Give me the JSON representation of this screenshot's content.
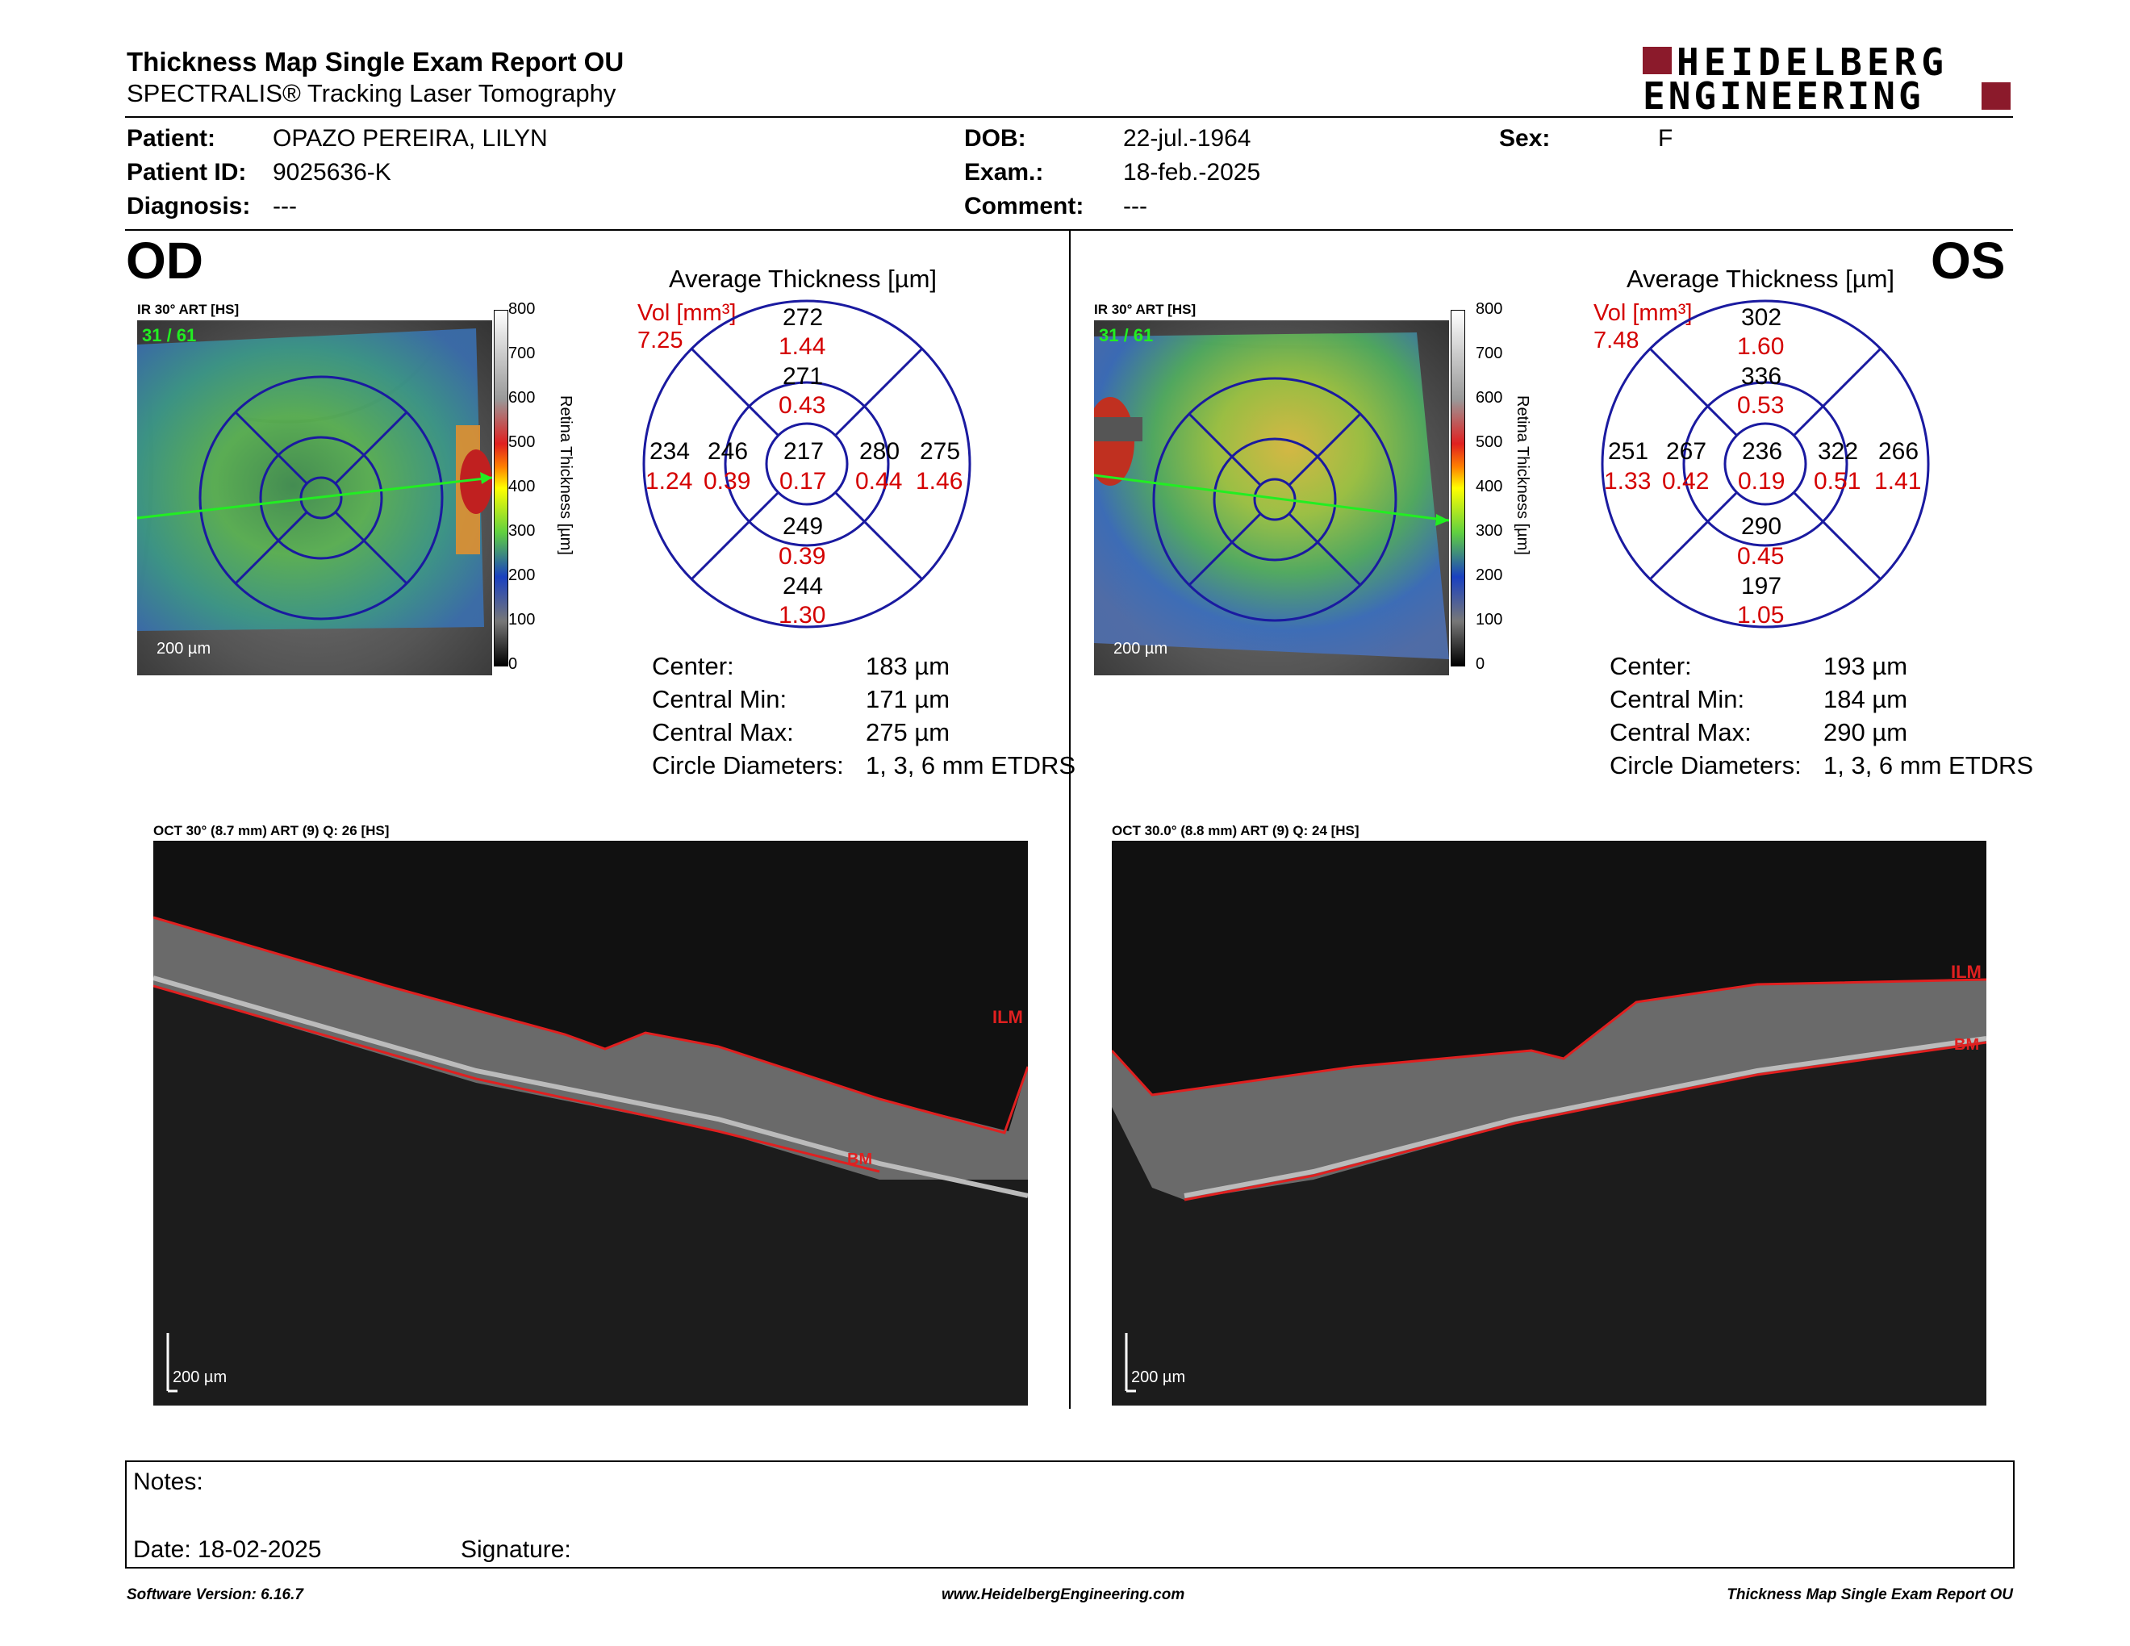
{
  "header": {
    "title": "Thickness Map Single Exam Report OU",
    "subtitle": "SPECTRALIS® Tracking Laser Tomography",
    "logo_line1": "HEIDELBERG",
    "logo_line2": "ENGINEERING",
    "logo_color": "#8b1a2b"
  },
  "patient": {
    "patient_label": "Patient:",
    "patient_value": "OPAZO PEREIRA, LILYN",
    "id_label": "Patient ID:",
    "id_value": "9025636-K",
    "diagnosis_label": "Diagnosis:",
    "diagnosis_value": "---",
    "dob_label": "DOB:",
    "dob_value": "22-jul.-1964",
    "exam_label": "Exam.:",
    "exam_value": "18-feb.-2025",
    "comment_label": "Comment:",
    "comment_value": "---",
    "sex_label": "Sex:",
    "sex_value": "F"
  },
  "od": {
    "eye_label": "OD",
    "ir_label": "IR 30° ART [HS]",
    "frame_label": "31 / 61",
    "scale_label": "200 µm",
    "chart_title": "Average Thickness [µm]",
    "vol_label": "Vol [mm³]",
    "vol_value": "7.25",
    "sectors": {
      "outer_sup": {
        "t": "272",
        "v": "1.44"
      },
      "inner_sup": {
        "t": "271",
        "v": "0.43"
      },
      "outer_left": {
        "t": "234",
        "v": "1.24"
      },
      "inner_left": {
        "t": "246",
        "v": "0.39"
      },
      "center": {
        "t": "217",
        "v": "0.17"
      },
      "inner_right": {
        "t": "280",
        "v": "0.44"
      },
      "outer_right": {
        "t": "275",
        "v": "1.46"
      },
      "inner_inf": {
        "t": "249",
        "v": "0.39"
      },
      "outer_inf": {
        "t": "244",
        "v": "1.30"
      }
    },
    "stats": {
      "center_label": "Center:",
      "center_value": "183 µm",
      "min_label": "Central Min:",
      "min_value": "171 µm",
      "max_label": "Central Max:",
      "max_value": "275 µm",
      "diam_label": "Circle Diameters:",
      "diam_value": "1, 3, 6 mm ETDRS"
    },
    "oct_label": "OCT 30° (8.7 mm) ART (9) Q: 26 [HS]",
    "oct_scale": "200 µm",
    "ilm": "ILM",
    "bm": "BM"
  },
  "os": {
    "eye_label": "OS",
    "ir_label": "IR 30° ART [HS]",
    "frame_label": "31 / 61",
    "scale_label": "200 µm",
    "chart_title": "Average Thickness [µm]",
    "vol_label": "Vol [mm³]",
    "vol_value": "7.48",
    "sectors": {
      "outer_sup": {
        "t": "302",
        "v": "1.60"
      },
      "inner_sup": {
        "t": "336",
        "v": "0.53"
      },
      "outer_left": {
        "t": "251",
        "v": "1.33"
      },
      "inner_left": {
        "t": "267",
        "v": "0.42"
      },
      "center": {
        "t": "236",
        "v": "0.19"
      },
      "inner_right": {
        "t": "322",
        "v": "0.51"
      },
      "outer_right": {
        "t": "266",
        "v": "1.41"
      },
      "inner_inf": {
        "t": "290",
        "v": "0.45"
      },
      "outer_inf": {
        "t": "197",
        "v": "1.05"
      }
    },
    "stats": {
      "center_label": "Center:",
      "center_value": "193 µm",
      "min_label": "Central Min:",
      "min_value": "184 µm",
      "max_label": "Central Max:",
      "max_value": "290 µm",
      "diam_label": "Circle Diameters:",
      "diam_value": "1, 3, 6 mm ETDRS"
    },
    "oct_label": "OCT 30.0° (8.8 mm) ART (9) Q: 24 [HS]",
    "oct_scale": "200 µm",
    "ilm": "ILM",
    "bm": "BM"
  },
  "colorbar": {
    "title": "Retina Thickness [µm]",
    "ticks": [
      "800",
      "700",
      "600",
      "500",
      "400",
      "300",
      "200",
      "100",
      "0"
    ]
  },
  "notes": {
    "notes_label": "Notes:",
    "date_label": "Date: 18-02-2025",
    "signature_label": "Signature:"
  },
  "footer": {
    "software": "Software Version: 6.16.7",
    "website": "www.HeidelbergEngineering.com",
    "report": "Thickness Map Single Exam Report OU"
  },
  "colors": {
    "red_text": "#d40000",
    "grid_blue": "#1a1aa0",
    "green_line": "#22ee22"
  }
}
